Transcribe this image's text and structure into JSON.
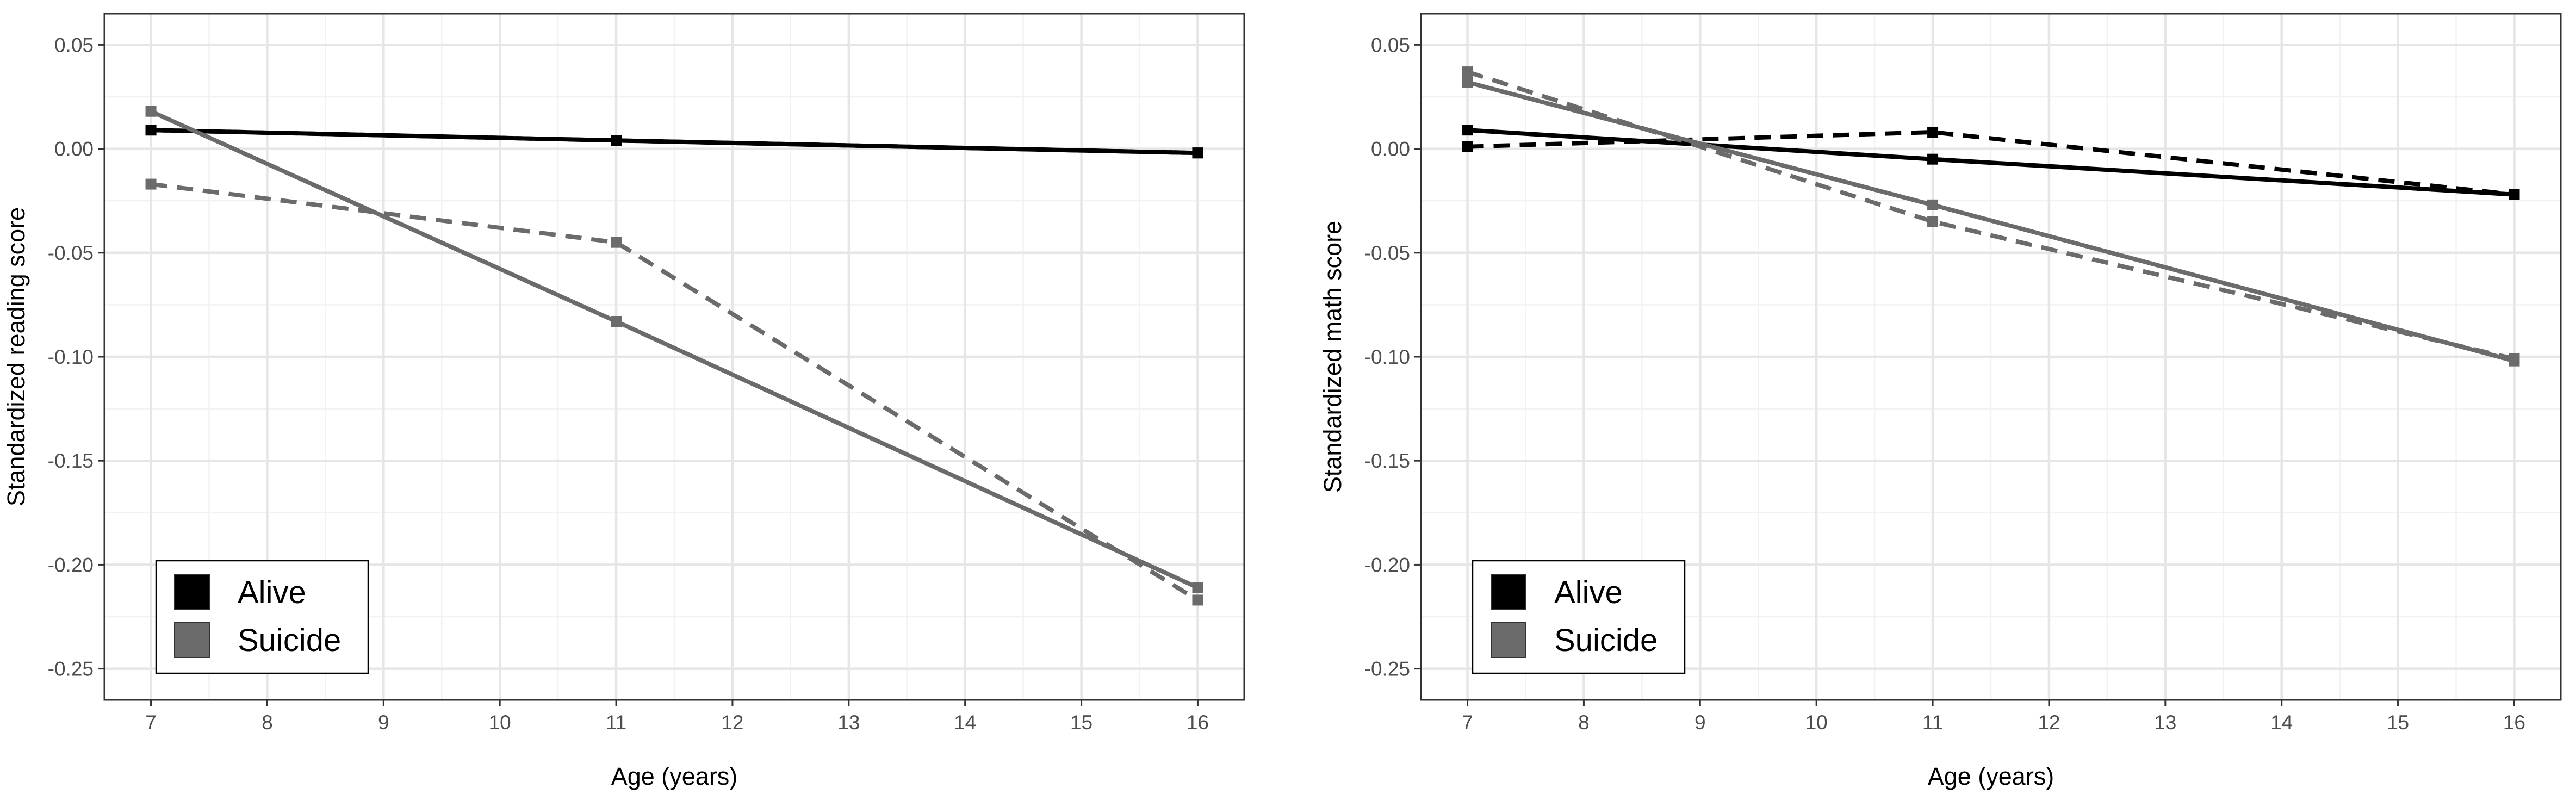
{
  "colors": {
    "alive": "#000000",
    "suicide": "#6b6b6b"
  },
  "chart_data": [
    {
      "type": "line",
      "xlabel": "Age (years)",
      "ylabel": "Standardized reading score",
      "xlim": [
        6.6,
        16.4
      ],
      "ylim": [
        -0.265,
        0.065
      ],
      "x_ticks": [
        7,
        8,
        9,
        10,
        11,
        12,
        13,
        14,
        15,
        16
      ],
      "y_ticks": [
        0.05,
        0.0,
        -0.05,
        -0.1,
        -0.15,
        -0.2,
        -0.25
      ],
      "y_tick_labels": [
        "0.05",
        "0.00",
        "-0.05",
        "-0.10",
        "-0.15",
        "-0.20",
        "-0.25"
      ],
      "grid": true,
      "legend": {
        "position": "bottom-left",
        "entries": [
          "Alive",
          "Suicide"
        ]
      },
      "series": [
        {
          "name": "Alive",
          "color_key": "alive",
          "linestyle": "solid",
          "x": [
            7,
            11,
            16
          ],
          "y": [
            0.009,
            0.004,
            -0.002
          ]
        },
        {
          "name": "Alive",
          "color_key": "alive",
          "linestyle": "dashed",
          "x": [
            7,
            11,
            16
          ],
          "y": [
            0.009,
            0.004,
            -0.002
          ]
        },
        {
          "name": "Suicide",
          "color_key": "suicide",
          "linestyle": "solid",
          "x": [
            7,
            11,
            16
          ],
          "y": [
            0.018,
            -0.083,
            -0.211
          ]
        },
        {
          "name": "Suicide",
          "color_key": "suicide",
          "linestyle": "dashed",
          "x": [
            7,
            11,
            16
          ],
          "y": [
            -0.017,
            -0.045,
            -0.217
          ]
        }
      ]
    },
    {
      "type": "line",
      "xlabel": "Age (years)",
      "ylabel": "Standardized math score",
      "xlim": [
        6.6,
        16.4
      ],
      "ylim": [
        -0.265,
        0.065
      ],
      "x_ticks": [
        7,
        8,
        9,
        10,
        11,
        12,
        13,
        14,
        15,
        16
      ],
      "y_ticks": [
        0.05,
        0.0,
        -0.05,
        -0.1,
        -0.15,
        -0.2,
        -0.25
      ],
      "y_tick_labels": [
        "0.05",
        "0.00",
        "-0.05",
        "-0.10",
        "-0.15",
        "-0.20",
        "-0.25"
      ],
      "grid": true,
      "legend": {
        "position": "bottom-left",
        "entries": [
          "Alive",
          "Suicide"
        ]
      },
      "series": [
        {
          "name": "Alive",
          "color_key": "alive",
          "linestyle": "solid",
          "x": [
            7,
            11,
            16
          ],
          "y": [
            0.009,
            -0.005,
            -0.022
          ]
        },
        {
          "name": "Alive",
          "color_key": "alive",
          "linestyle": "dashed",
          "x": [
            7,
            11,
            16
          ],
          "y": [
            0.001,
            0.008,
            -0.022
          ]
        },
        {
          "name": "Suicide",
          "color_key": "suicide",
          "linestyle": "solid",
          "x": [
            7,
            11,
            16
          ],
          "y": [
            0.032,
            -0.027,
            -0.102
          ]
        },
        {
          "name": "Suicide",
          "color_key": "suicide",
          "linestyle": "dashed",
          "x": [
            7,
            11,
            16
          ],
          "y": [
            0.037,
            -0.035,
            -0.101
          ]
        }
      ]
    }
  ]
}
